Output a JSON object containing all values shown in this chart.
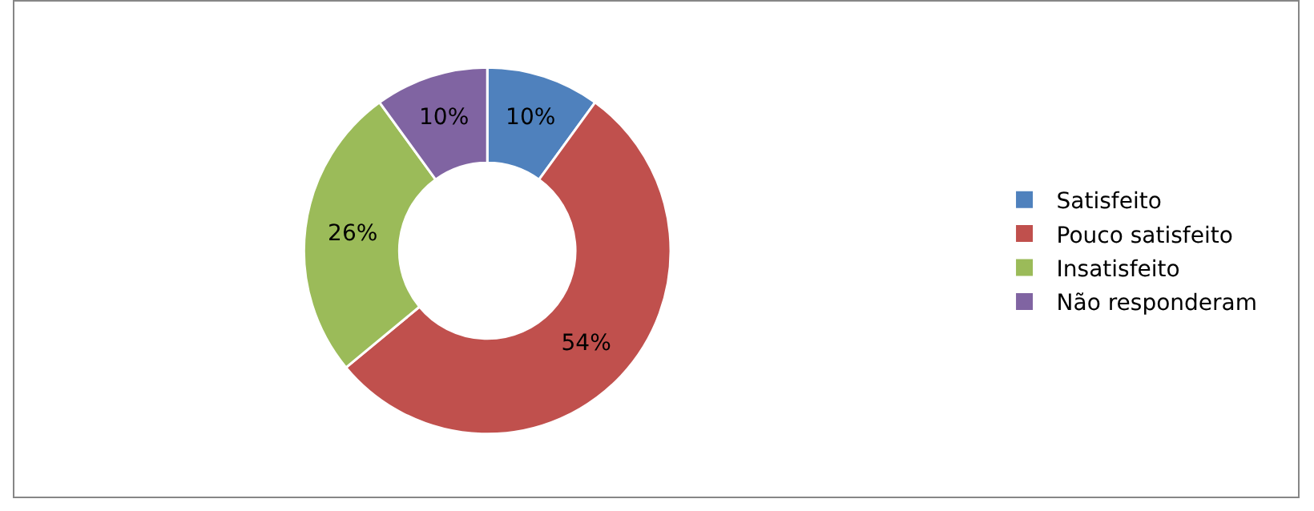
{
  "chart_data": {
    "type": "donut",
    "categories": [
      "Satisfeito",
      "Pouco satisfeito",
      "Insatisfeito",
      "Não responderam"
    ],
    "values": [
      10,
      54,
      26,
      10
    ],
    "value_labels": [
      "10%",
      "54%",
      "26%",
      "10%"
    ],
    "colors": [
      "#4f81bd",
      "#c0504d",
      "#9bbb59",
      "#8064a2"
    ],
    "legend": "right"
  }
}
